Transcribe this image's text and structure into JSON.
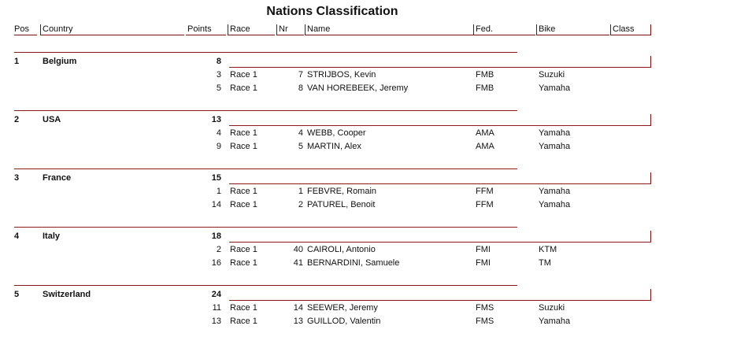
{
  "title": "Nations Classification",
  "headers": {
    "pos": "Pos",
    "country": "Country",
    "points": "Points",
    "race": "Race",
    "nr": "Nr",
    "name": "Name",
    "fed": "Fed.",
    "bike": "Bike",
    "class": "Class"
  },
  "nations": [
    {
      "pos": "1",
      "country": "Belgium",
      "points": "8",
      "riders": [
        {
          "points": "3",
          "race": "Race 1",
          "nr": "7",
          "name": "STRIJBOS, Kevin",
          "fed": "FMB",
          "bike": "Suzuki"
        },
        {
          "points": "5",
          "race": "Race 1",
          "nr": "8",
          "name": "VAN HOREBEEK, Jeremy",
          "fed": "FMB",
          "bike": "Yamaha"
        }
      ]
    },
    {
      "pos": "2",
      "country": "USA",
      "points": "13",
      "riders": [
        {
          "points": "4",
          "race": "Race 1",
          "nr": "4",
          "name": "WEBB, Cooper",
          "fed": "AMA",
          "bike": "Yamaha"
        },
        {
          "points": "9",
          "race": "Race 1",
          "nr": "5",
          "name": "MARTIN, Alex",
          "fed": "AMA",
          "bike": "Yamaha"
        }
      ]
    },
    {
      "pos": "3",
      "country": "France",
      "points": "15",
      "riders": [
        {
          "points": "1",
          "race": "Race 1",
          "nr": "1",
          "name": "FEBVRE, Romain",
          "fed": "FFM",
          "bike": "Yamaha"
        },
        {
          "points": "14",
          "race": "Race 1",
          "nr": "2",
          "name": "PATUREL, Benoit",
          "fed": "FFM",
          "bike": "Yamaha"
        }
      ]
    },
    {
      "pos": "4",
      "country": "Italy",
      "points": "18",
      "riders": [
        {
          "points": "2",
          "race": "Race 1",
          "nr": "40",
          "name": "CAIROLI, Antonio",
          "fed": "FMI",
          "bike": "KTM"
        },
        {
          "points": "16",
          "race": "Race 1",
          "nr": "41",
          "name": "BERNARDINI, Samuele",
          "fed": "FMI",
          "bike": "TM"
        }
      ]
    },
    {
      "pos": "5",
      "country": "Switzerland",
      "points": "24",
      "riders": [
        {
          "points": "11",
          "race": "Race 1",
          "nr": "14",
          "name": "SEEWER, Jeremy",
          "fed": "FMS",
          "bike": "Suzuki"
        },
        {
          "points": "13",
          "race": "Race 1",
          "nr": "13",
          "name": "GUILLOD, Valentin",
          "fed": "FMS",
          "bike": "Yamaha"
        }
      ]
    }
  ]
}
